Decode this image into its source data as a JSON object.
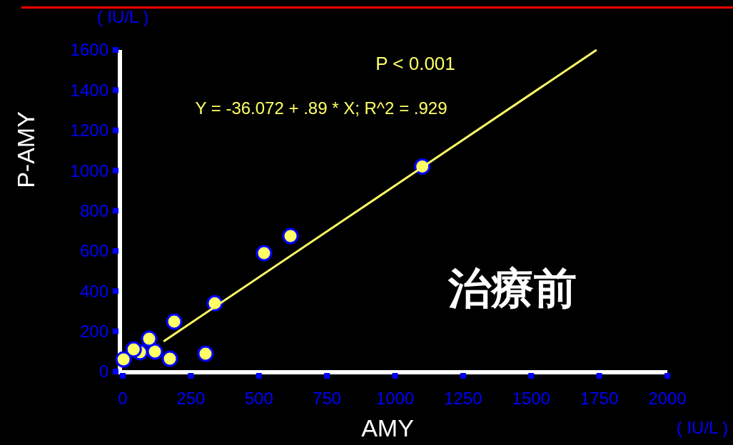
{
  "chart_data": {
    "type": "scatter",
    "xlabel": "AMY",
    "ylabel": "P-AMY",
    "xlim": [
      0,
      2000
    ],
    "xticks": [
      0,
      250,
      500,
      750,
      1000,
      1250,
      1500,
      1750,
      2000
    ],
    "ylim": [
      0,
      1600
    ],
    "yticks": [
      0,
      200,
      400,
      600,
      800,
      1000,
      1200,
      1400,
      1600
    ],
    "grid": false,
    "marker": "circle",
    "series": [
      {
        "type": "scatter",
        "color": "#ffff66",
        "x": [
          1100,
          616,
          519,
          338,
          189,
          304,
          173,
          118,
          97,
          63,
          40,
          3
        ],
        "values": [
          1020,
          674,
          589,
          340,
          248,
          89,
          64,
          99,
          163,
          96,
          110,
          60
        ]
      },
      {
        "type": "line",
        "color": "#ffff66",
        "marker": "none",
        "x": [
          150,
          1740
        ],
        "values": [
          150,
          1600
        ]
      }
    ],
    "annotations": [
      "( IU/L )",
      "( IU/L )",
      "P < 0.001",
      "Y = -36.072 + .89 * X; R^2 = .929",
      "治療前"
    ]
  }
}
